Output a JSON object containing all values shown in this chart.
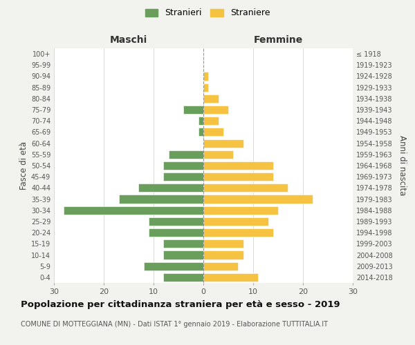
{
  "age_groups": [
    "0-4",
    "5-9",
    "10-14",
    "15-19",
    "20-24",
    "25-29",
    "30-34",
    "35-39",
    "40-44",
    "45-49",
    "50-54",
    "55-59",
    "60-64",
    "65-69",
    "70-74",
    "75-79",
    "80-84",
    "85-89",
    "90-94",
    "95-99",
    "100+"
  ],
  "birth_years": [
    "2014-2018",
    "2009-2013",
    "2004-2008",
    "1999-2003",
    "1994-1998",
    "1989-1993",
    "1984-1988",
    "1979-1983",
    "1974-1978",
    "1969-1973",
    "1964-1968",
    "1959-1963",
    "1954-1958",
    "1949-1953",
    "1944-1948",
    "1939-1943",
    "1934-1938",
    "1929-1933",
    "1924-1928",
    "1919-1923",
    "≤ 1918"
  ],
  "males": [
    8,
    12,
    8,
    8,
    11,
    11,
    28,
    17,
    13,
    8,
    8,
    7,
    0,
    1,
    1,
    4,
    0,
    0,
    0,
    0,
    0
  ],
  "females": [
    11,
    7,
    8,
    8,
    14,
    13,
    15,
    22,
    17,
    14,
    14,
    6,
    8,
    4,
    3,
    5,
    3,
    1,
    1,
    0,
    0
  ],
  "male_color": "#6a9e5d",
  "female_color": "#f5c242",
  "background_color": "#f2f2ee",
  "bar_background": "#ffffff",
  "grid_color": "#cccccc",
  "center_line_color": "#999999",
  "title": "Popolazione per cittadinanza straniera per età e sesso - 2019",
  "subtitle": "COMUNE DI MOTTEGGIANA (MN) - Dati ISTAT 1° gennaio 2019 - Elaborazione TUTTITALIA.IT",
  "xlabel_left": "Maschi",
  "xlabel_right": "Femmine",
  "ylabel_left": "Fasce di età",
  "ylabel_right": "Anni di nascita",
  "legend_male": "Stranieri",
  "legend_female": "Straniere",
  "xlim": 30
}
